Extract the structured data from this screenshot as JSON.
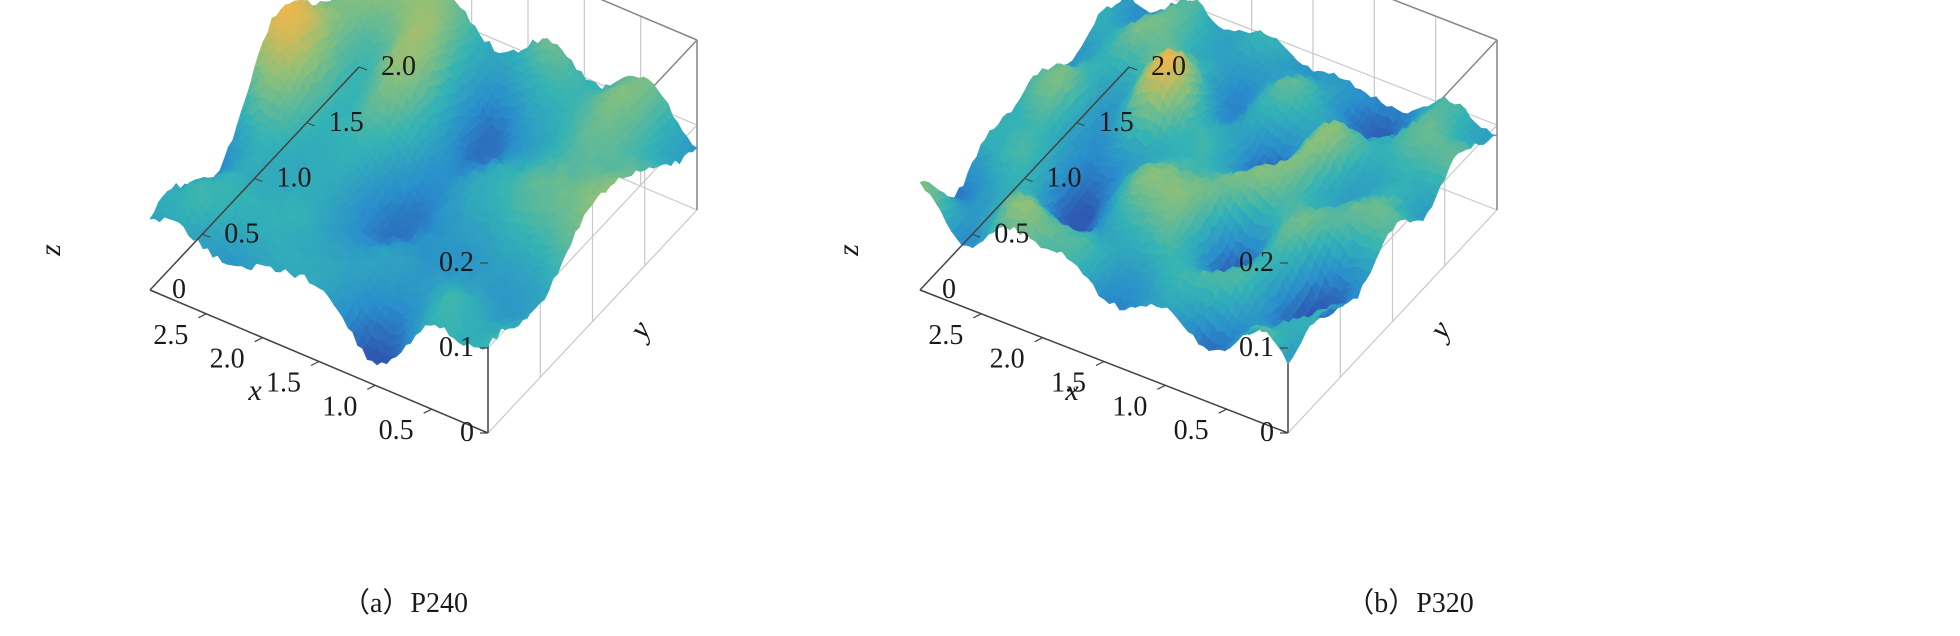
{
  "chart_data": [
    {
      "type": "surface",
      "caption": "（a）P240",
      "xlabel": "x",
      "ylabel": "y",
      "zlabel": "z",
      "xlim": [
        0,
        3.0
      ],
      "ylim": [
        0,
        2.0
      ],
      "zlim": [
        0,
        0.2
      ],
      "xticks": [
        0.5,
        1.0,
        1.5,
        2.0,
        2.5
      ],
      "xtick_labels": [
        "0.5",
        "1.0",
        "1.5",
        "2.0",
        "2.5"
      ],
      "yticks": [
        0,
        0.5,
        1.0,
        1.5,
        2.0
      ],
      "ytick_labels": [
        "0",
        "0.5",
        "1.0",
        "1.5",
        "2.0"
      ],
      "zticks": [
        0,
        0.1,
        0.2
      ],
      "ztick_labels": [
        "0",
        "0.1",
        "0.2"
      ],
      "z_mean": 0.1,
      "z_amplitude": 0.075,
      "roughness": "coarse",
      "colormap": [
        "#2f4fae",
        "#2a8fcc",
        "#34b3b5",
        "#8cc07a",
        "#f2b64a"
      ],
      "grid": true
    },
    {
      "type": "surface",
      "caption": "（b）P320",
      "xlabel": "x",
      "ylabel": "y",
      "zlabel": "z",
      "xlim": [
        0,
        3.0
      ],
      "ylim": [
        0,
        2.0
      ],
      "zlim": [
        0,
        0.2
      ],
      "xticks": [
        0.5,
        1.0,
        1.5,
        2.0,
        2.5
      ],
      "xtick_labels": [
        "0.5",
        "1.0",
        "1.5",
        "2.0",
        "2.5"
      ],
      "yticks": [
        0,
        0.5,
        1.0,
        1.5,
        2.0
      ],
      "ytick_labels": [
        "0",
        "0.5",
        "1.0",
        "1.5",
        "2.0"
      ],
      "zticks": [
        0,
        0.1,
        0.2
      ],
      "ztick_labels": [
        "0",
        "0.1",
        "0.2"
      ],
      "z_mean": 0.1,
      "z_amplitude": 0.05,
      "roughness": "fine",
      "colormap": [
        "#2f4fae",
        "#2a8fcc",
        "#34b3b5",
        "#8cc07a",
        "#f2b64a"
      ],
      "grid": true
    }
  ]
}
